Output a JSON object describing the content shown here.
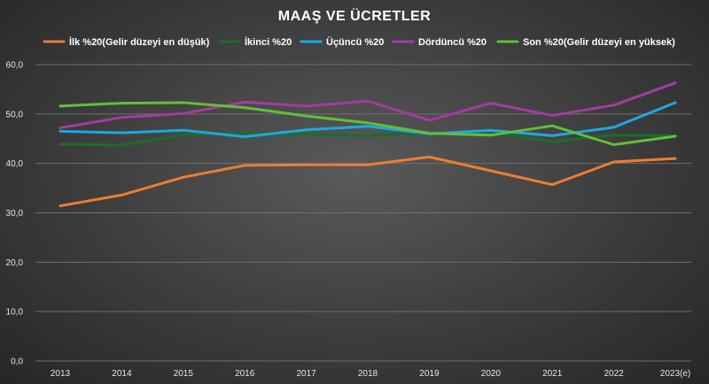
{
  "chart_data": {
    "type": "line",
    "title": "MAAŞ VE ÜCRETLER",
    "xlabel": "",
    "ylabel": "",
    "ylim": [
      0,
      60
    ],
    "yticks": [
      "0,0",
      "10,0",
      "20,0",
      "30,0",
      "40,0",
      "50,0",
      "60,0"
    ],
    "grid": true,
    "legend_position": "top",
    "categories": [
      "2013",
      "2014",
      "2015",
      "2016",
      "2017",
      "2018",
      "2019",
      "2020",
      "2021",
      "2022",
      "2023(e)"
    ],
    "series": [
      {
        "name": "İlk %20(Gelir düzeyi en düşük)",
        "color": "#ed7d31",
        "values": [
          31.4,
          33.6,
          37.2,
          39.6,
          39.7,
          39.7,
          41.3,
          38.5,
          35.7,
          40.3,
          41.0
        ]
      },
      {
        "name": "İkinci %20",
        "color": "#1e6b2c",
        "values": [
          43.9,
          43.7,
          45.8,
          46.1,
          45.9,
          45.6,
          46.2,
          46.3,
          44.4,
          45.7,
          45.6
        ]
      },
      {
        "name": "Üçüncü %20",
        "color": "#1ea7e1",
        "values": [
          46.5,
          46.2,
          46.7,
          45.4,
          46.8,
          47.5,
          46.0,
          46.7,
          45.6,
          47.3,
          52.3
        ]
      },
      {
        "name": "Dördüncü %20",
        "color": "#a03ca3",
        "values": [
          47.2,
          49.3,
          50.1,
          52.4,
          51.6,
          52.6,
          48.7,
          52.2,
          49.7,
          51.8,
          56.3
        ]
      },
      {
        "name": "Son %20(Gelir düzeyi en yüksek)",
        "color": "#5fbf3a",
        "values": [
          51.6,
          52.2,
          52.3,
          51.3,
          49.6,
          48.2,
          46.1,
          45.7,
          47.6,
          43.8,
          45.5
        ]
      }
    ]
  }
}
